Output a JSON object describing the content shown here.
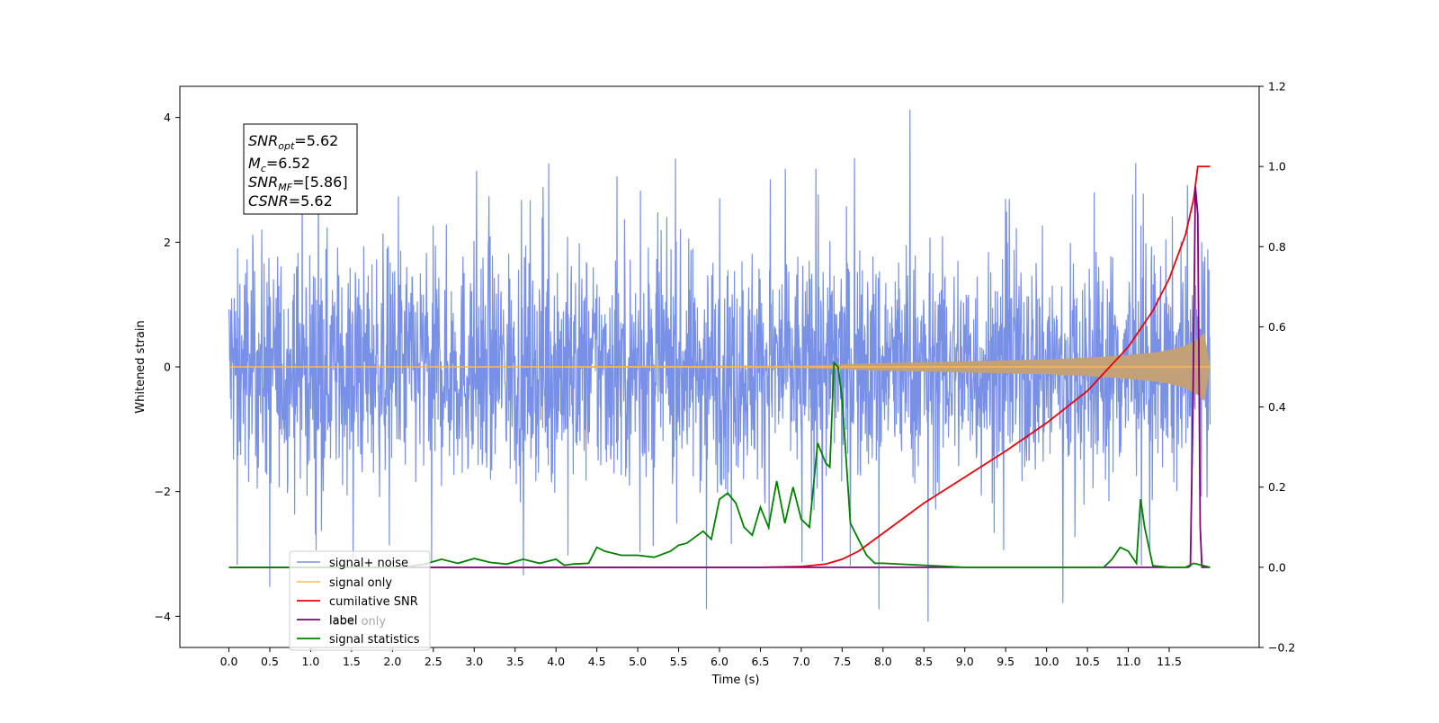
{
  "chart_data": {
    "type": "line",
    "xlabel": "Time (s)",
    "ylabel": "Whitened strain",
    "xlim": [
      -0.6,
      12.6
    ],
    "ylim": [
      -4.5,
      4.5
    ],
    "y2lim": [
      -0.2,
      1.2
    ],
    "x_ticks": [
      "0.0",
      "0.5",
      "1.0",
      "1.5",
      "2.0",
      "2.5",
      "3.0",
      "3.5",
      "4.0",
      "4.5",
      "5.0",
      "5.5",
      "6.0",
      "6.5",
      "7.0",
      "7.5",
      "8.0",
      "8.5",
      "9.0",
      "9.5",
      "10.0",
      "10.5",
      "11.0",
      "11.5"
    ],
    "y_ticks": [
      "4",
      "2",
      "0",
      "−2",
      "−4"
    ],
    "y2_ticks": [
      "1.2",
      "1.0",
      "0.8",
      "0.6",
      "0.4",
      "0.2",
      "0.0",
      "−0.2"
    ],
    "annotation": {
      "lines": [
        {
          "main": "SNR",
          "sub": "opt",
          "value": "=5.62"
        },
        {
          "main": "M",
          "sub": "c",
          "value": "=6.52"
        },
        {
          "main": "SNR",
          "sub": "MF",
          "value": "=[5.86]"
        },
        {
          "main": "CSNR",
          "sub": "",
          "value": "=5.62"
        }
      ]
    },
    "legend": {
      "placement": "lower-left",
      "entries": [
        "signal+ noise",
        "signal only",
        "cumilative SNR",
        "label",
        "signal statistics"
      ],
      "ghost_text": "label only"
    },
    "colors": {
      "signal_noise": "#7890e6",
      "signal_only": "#ffb84d",
      "signal_fill": "#c2a078",
      "cumulative_snr": "#e8000b",
      "label": "#800080",
      "signal_statistics": "#008000"
    },
    "series": [
      {
        "name": "signal+ noise",
        "description": "white-noise strain, amplitude envelope about ±2.5 with spikes up to ±4.1",
        "x_range": [
          0.0,
          12.0
        ],
        "peaks": [
          [
            8.33,
            4.12
          ],
          [
            8.55,
            -4.08
          ],
          [
            7.95,
            -3.88
          ],
          [
            5.84,
            -3.88
          ],
          [
            0.5,
            -3.52
          ],
          [
            10.2,
            -3.78
          ]
        ]
      },
      {
        "name": "signal only",
        "x": [
          0.0,
          7.0,
          8.0,
          9.0,
          10.0,
          10.5,
          11.0,
          11.3,
          11.5,
          11.7,
          11.85,
          11.93,
          12.0
        ],
        "envelope": [
          0.0,
          0.02,
          0.06,
          0.09,
          0.12,
          0.15,
          0.19,
          0.23,
          0.27,
          0.34,
          0.45,
          0.55,
          0.0
        ]
      },
      {
        "name": "cumilative SNR",
        "x": [
          0.0,
          6.5,
          7.0,
          7.3,
          7.5,
          7.7,
          8.0,
          8.5,
          9.0,
          9.5,
          10.0,
          10.5,
          11.0,
          11.3,
          11.5,
          11.7,
          11.8,
          11.85,
          11.9,
          12.0
        ],
        "y": [
          0.0,
          0.0,
          0.002,
          0.008,
          0.02,
          0.04,
          0.085,
          0.16,
          0.225,
          0.29,
          0.36,
          0.44,
          0.55,
          0.64,
          0.72,
          0.83,
          0.92,
          1.0,
          1.0,
          1.0
        ]
      },
      {
        "name": "label",
        "x": [
          0.0,
          11.6,
          11.73,
          11.76,
          11.79,
          11.82,
          11.85,
          11.88,
          11.9,
          12.0
        ],
        "y": [
          0.0,
          0.0,
          0.0,
          0.004,
          0.4,
          0.95,
          0.88,
          0.1,
          0.0,
          0.0
        ]
      },
      {
        "name": "signal statistics",
        "x": [
          0.0,
          2.0,
          2.2,
          2.4,
          2.6,
          2.8,
          3.0,
          3.2,
          3.4,
          3.6,
          3.8,
          4.0,
          4.1,
          4.2,
          4.4,
          4.5,
          4.6,
          4.8,
          5.0,
          5.2,
          5.4,
          5.5,
          5.6,
          5.8,
          5.9,
          6.0,
          6.1,
          6.2,
          6.3,
          6.4,
          6.5,
          6.6,
          6.7,
          6.8,
          6.9,
          7.0,
          7.1,
          7.2,
          7.3,
          7.35,
          7.4,
          7.45,
          7.5,
          7.6,
          7.7,
          7.8,
          7.9,
          8.0,
          8.5,
          9.0,
          10.0,
          10.7,
          10.8,
          10.9,
          11.0,
          11.1,
          11.15,
          11.2,
          11.3,
          11.5,
          11.7,
          11.8,
          12.0
        ],
        "y": [
          0.0,
          0.0,
          0.002,
          0.008,
          0.02,
          0.01,
          0.022,
          0.012,
          0.008,
          0.02,
          0.01,
          0.02,
          0.005,
          0.008,
          0.01,
          0.05,
          0.04,
          0.03,
          0.03,
          0.025,
          0.04,
          0.055,
          0.06,
          0.09,
          0.07,
          0.17,
          0.185,
          0.16,
          0.1,
          0.08,
          0.15,
          0.1,
          0.215,
          0.11,
          0.2,
          0.12,
          0.1,
          0.31,
          0.26,
          0.25,
          0.51,
          0.5,
          0.42,
          0.11,
          0.07,
          0.03,
          0.01,
          0.01,
          0.005,
          0.0,
          0.0,
          0.0,
          0.02,
          0.05,
          0.04,
          0.01,
          0.17,
          0.1,
          0.004,
          0.0,
          0.0,
          0.01,
          0.0
        ]
      }
    ]
  }
}
